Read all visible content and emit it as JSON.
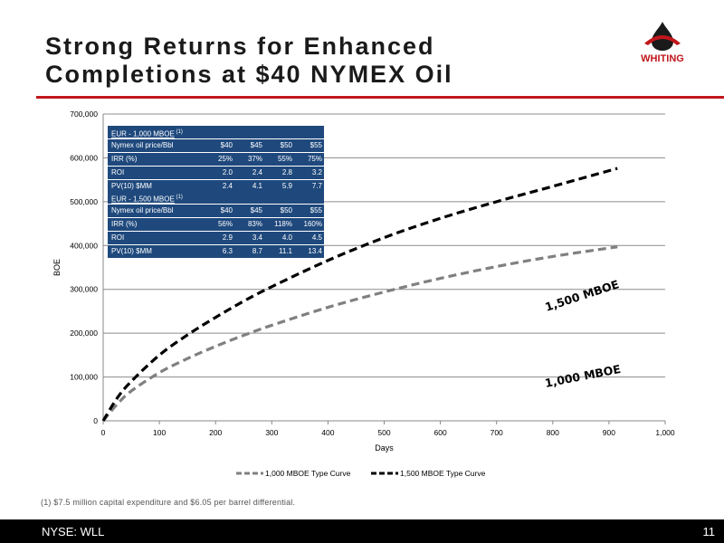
{
  "title": "Strong Returns for Enhanced Completions at $40 NYMEX Oil",
  "logo": {
    "text": "WHITING",
    "color": "#c0161c"
  },
  "footnote": "(1) $7.5 million capital expenditure and $6.05 per barrel differential.",
  "footer": {
    "ticker": "NYSE: WLL",
    "page": "11"
  },
  "colors": {
    "accent": "#c0161c",
    "table_bg": "#1f497d",
    "series_1000": "#808080",
    "series_1500": "#000000"
  },
  "tables": [
    {
      "title": "EUR - 1,000 MBOE",
      "superscript": "(1)",
      "rows": [
        {
          "label": "Nymex oil price/Bbl",
          "values": [
            "$40",
            "$45",
            "$50",
            "$55"
          ]
        },
        {
          "label": "IRR (%)",
          "values": [
            "25%",
            "37%",
            "55%",
            "75%"
          ]
        },
        {
          "label": "ROI",
          "values": [
            "2.0",
            "2.4",
            "2.8",
            "3.2"
          ]
        },
        {
          "label": "PV(10) $MM",
          "values": [
            "2.4",
            "4.1",
            "5.9",
            "7.7"
          ]
        }
      ]
    },
    {
      "title": "EUR - 1,500 MBOE",
      "superscript": "(1)",
      "rows": [
        {
          "label": "Nymex oil price/Bbl",
          "values": [
            "$40",
            "$45",
            "$50",
            "$55"
          ]
        },
        {
          "label": "IRR (%)",
          "values": [
            "56%",
            "83%",
            "118%",
            "160%"
          ]
        },
        {
          "label": "ROI",
          "values": [
            "2.9",
            "3.4",
            "4.0",
            "4.5"
          ]
        },
        {
          "label": "PV(10) $MM",
          "values": [
            "6.3",
            "8.7",
            "11.1",
            "13.4"
          ]
        }
      ]
    }
  ],
  "chart_data": {
    "type": "line",
    "xlabel": "Days",
    "ylabel": "BOE",
    "xlim": [
      0,
      1000
    ],
    "ylim": [
      0,
      700000
    ],
    "x_ticks": [
      "0",
      "100",
      "200",
      "300",
      "400",
      "500",
      "600",
      "700",
      "800",
      "900",
      "1,000"
    ],
    "y_ticks": [
      "0",
      "100,000",
      "200,000",
      "300,000",
      "400,000",
      "500,000",
      "600,000",
      "700,000"
    ],
    "grid": true,
    "legend_position": "bottom",
    "annotations": [
      "1,500 MBOE",
      "1,000 MBOE"
    ],
    "series": [
      {
        "name": "1,000 MBOE Type Curve",
        "style": "dashed",
        "color": "#808080",
        "x": [
          0,
          25,
          50,
          100,
          150,
          200,
          250,
          300,
          400,
          500,
          600,
          700,
          800,
          915
        ],
        "y": [
          0,
          38000,
          68000,
          110000,
          142000,
          170000,
          195000,
          218000,
          259000,
          294000,
          325000,
          352000,
          375000,
          397000
        ]
      },
      {
        "name": "1,500 MBOE Type Curve",
        "style": "dashed",
        "color": "#000000",
        "x": [
          0,
          25,
          50,
          100,
          150,
          200,
          250,
          300,
          400,
          500,
          600,
          700,
          800,
          915
        ],
        "y": [
          0,
          52000,
          90000,
          150000,
          196000,
          236000,
          273000,
          306000,
          366000,
          418000,
          462000,
          500000,
          535000,
          576000
        ]
      }
    ]
  }
}
